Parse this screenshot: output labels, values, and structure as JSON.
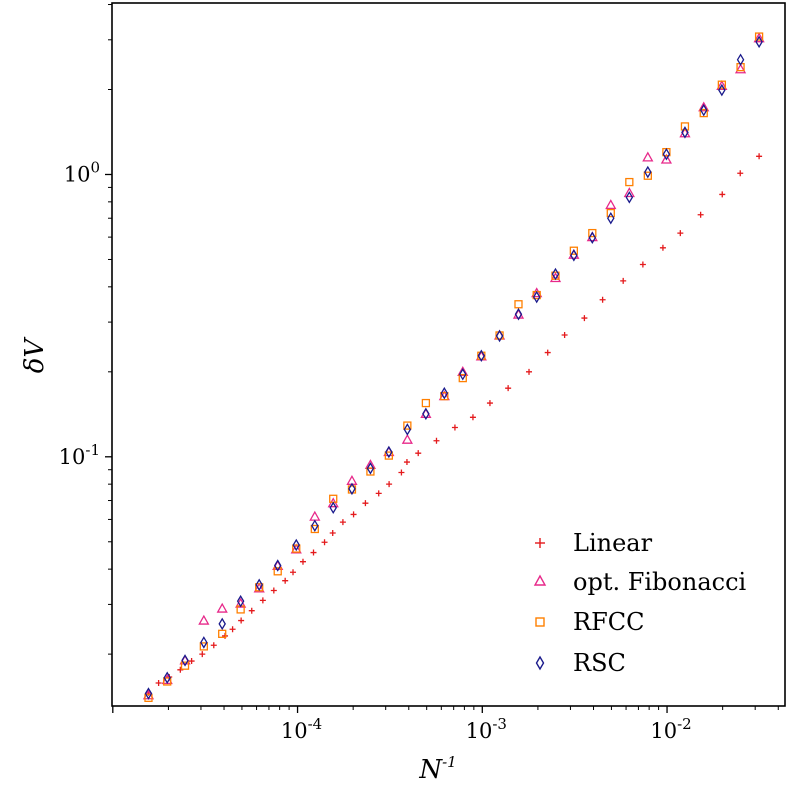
{
  "chart_data": {
    "type": "scatter",
    "title": "",
    "xlabel": "N",
    "xlabel_superscript": "-1",
    "ylabel": "δV",
    "xscale": "log",
    "yscale": "log",
    "xlim": [
      9.9e-06,
      0.0435
    ],
    "ylim": [
      0.0131,
      4.05
    ],
    "grid": false,
    "legend_position": "lower-right",
    "x_ticks": [
      {
        "base": "10",
        "exp": "-4",
        "value": 0.0001
      },
      {
        "base": "10",
        "exp": "-3",
        "value": 0.001
      },
      {
        "base": "10",
        "exp": "-2",
        "value": 0.01
      }
    ],
    "y_ticks": [
      {
        "base": "10",
        "exp": "0",
        "value": 1
      },
      {
        "base": "10",
        "exp": "-1",
        "value": 0.1
      }
    ],
    "series": [
      {
        "name": "Linear",
        "marker": "plus",
        "color": "#e41a1c",
        "points": [
          [
            1.56e-05,
            0.0146
          ],
          [
            1.77e-05,
            0.0158
          ],
          [
            2.02e-05,
            0.0166
          ],
          [
            2.32e-05,
            0.0176
          ],
          [
            2.67e-05,
            0.0189
          ],
          [
            3.05e-05,
            0.02
          ],
          [
            3.52e-05,
            0.0215
          ],
          [
            4.05e-05,
            0.0232
          ],
          [
            4.45e-05,
            0.0245
          ],
          [
            4.95e-05,
            0.0263
          ],
          [
            5.65e-05,
            0.0285
          ],
          [
            6.49e-05,
            0.031
          ],
          [
            7.44e-05,
            0.0336
          ],
          [
            8.57e-05,
            0.0364
          ],
          [
            9.45e-05,
            0.039
          ],
          [
            0.000107,
            0.0425
          ],
          [
            0.000122,
            0.0458
          ],
          [
            0.00014,
            0.0498
          ],
          [
            0.000155,
            0.0537
          ],
          [
            0.000176,
            0.0587
          ],
          [
            0.000201,
            0.0625
          ],
          [
            0.000233,
            0.0685
          ],
          [
            0.000275,
            0.0742
          ],
          [
            0.000313,
            0.08
          ],
          [
            0.000365,
            0.088
          ],
          [
            0.000391,
            0.0958
          ],
          [
            0.00045,
            0.103
          ],
          [
            0.000565,
            0.114
          ],
          [
            0.000711,
            0.127
          ],
          [
            0.00089,
            0.138
          ],
          [
            0.0011,
            0.155
          ],
          [
            0.00138,
            0.175
          ],
          [
            0.00179,
            0.2
          ],
          [
            0.00226,
            0.234
          ],
          [
            0.00279,
            0.27
          ],
          [
            0.00357,
            0.31
          ],
          [
            0.00448,
            0.36
          ],
          [
            0.00579,
            0.42
          ],
          [
            0.0074,
            0.48
          ],
          [
            0.0095,
            0.55
          ],
          [
            0.0118,
            0.62
          ],
          [
            0.0152,
            0.72
          ],
          [
            0.0199,
            0.85
          ],
          [
            0.0249,
            1.01
          ],
          [
            0.0315,
            1.16
          ]
        ]
      },
      {
        "name": "opt. Fibonacci",
        "marker": "triangle",
        "color": "#e7298a",
        "points": [
          [
            1.56e-05,
            0.0143
          ],
          [
            1.97e-05,
            0.0162
          ],
          [
            2.46e-05,
            0.019
          ],
          [
            3.11e-05,
            0.0263
          ],
          [
            3.91e-05,
            0.029
          ],
          [
            4.92e-05,
            0.0302
          ],
          [
            6.2e-05,
            0.0342
          ],
          [
            7.81e-05,
            0.0411
          ],
          [
            9.84e-05,
            0.047
          ],
          [
            0.000124,
            0.0614
          ],
          [
            0.000156,
            0.0685
          ],
          [
            0.000197,
            0.0822
          ],
          [
            0.000248,
            0.0936
          ],
          [
            0.000312,
            0.104
          ],
          [
            0.000393,
            0.115
          ],
          [
            0.000495,
            0.142
          ],
          [
            0.000623,
            0.164
          ],
          [
            0.000784,
            0.2
          ],
          [
            0.000988,
            0.227
          ],
          [
            0.00124,
            0.269
          ],
          [
            0.00157,
            0.319
          ],
          [
            0.00197,
            0.38
          ],
          [
            0.00249,
            0.43
          ],
          [
            0.00313,
            0.52
          ],
          [
            0.00394,
            0.6
          ],
          [
            0.00496,
            0.78
          ],
          [
            0.00625,
            0.86
          ],
          [
            0.00787,
            1.15
          ],
          [
            0.00992,
            1.13
          ],
          [
            0.0125,
            1.4
          ],
          [
            0.0158,
            1.73
          ],
          [
            0.0198,
            2.06
          ],
          [
            0.025,
            2.36
          ],
          [
            0.0315,
            3.04
          ]
        ]
      },
      {
        "name": "RFCC",
        "marker": "square",
        "color": "#ff7f00",
        "points": [
          [
            1.56e-05,
            0.014
          ],
          [
            1.97e-05,
            0.016
          ],
          [
            2.46e-05,
            0.0182
          ],
          [
            3.11e-05,
            0.0213
          ],
          [
            3.91e-05,
            0.0236
          ],
          [
            4.92e-05,
            0.0288
          ],
          [
            6.2e-05,
            0.0345
          ],
          [
            7.81e-05,
            0.0393
          ],
          [
            9.84e-05,
            0.0473
          ],
          [
            0.000124,
            0.0555
          ],
          [
            0.000156,
            0.071
          ],
          [
            0.000197,
            0.0766
          ],
          [
            0.000248,
            0.0887
          ],
          [
            0.000312,
            0.101
          ],
          [
            0.000393,
            0.129
          ],
          [
            0.000495,
            0.155
          ],
          [
            0.000623,
            0.164
          ],
          [
            0.000784,
            0.19
          ],
          [
            0.000988,
            0.228
          ],
          [
            0.00124,
            0.269
          ],
          [
            0.00157,
            0.347
          ],
          [
            0.00197,
            0.374
          ],
          [
            0.00249,
            0.438
          ],
          [
            0.00313,
            0.537
          ],
          [
            0.00394,
            0.62
          ],
          [
            0.00496,
            0.73
          ],
          [
            0.00625,
            0.94
          ],
          [
            0.00787,
            0.99
          ],
          [
            0.00992,
            1.2
          ],
          [
            0.0125,
            1.48
          ],
          [
            0.0158,
            1.65
          ],
          [
            0.0198,
            2.08
          ],
          [
            0.025,
            2.4
          ],
          [
            0.0315,
            3.08
          ]
        ]
      },
      {
        "name": "RSC",
        "marker": "diamond",
        "color": "#1a1a8c",
        "points": [
          [
            1.56e-05,
            0.0145
          ],
          [
            1.97e-05,
            0.0165
          ],
          [
            2.46e-05,
            0.019
          ],
          [
            3.11e-05,
            0.022
          ],
          [
            3.91e-05,
            0.0256
          ],
          [
            4.92e-05,
            0.0308
          ],
          [
            6.2e-05,
            0.0352
          ],
          [
            7.81e-05,
            0.0412
          ],
          [
            9.84e-05,
            0.0487
          ],
          [
            0.000124,
            0.057
          ],
          [
            0.000156,
            0.066
          ],
          [
            0.000197,
            0.077
          ],
          [
            0.000248,
            0.091
          ],
          [
            0.000312,
            0.104
          ],
          [
            0.000393,
            0.125
          ],
          [
            0.000495,
            0.142
          ],
          [
            0.000623,
            0.168
          ],
          [
            0.000784,
            0.196
          ],
          [
            0.000988,
            0.228
          ],
          [
            0.00124,
            0.268
          ],
          [
            0.00157,
            0.32
          ],
          [
            0.00197,
            0.368
          ],
          [
            0.00249,
            0.444
          ],
          [
            0.00313,
            0.517
          ],
          [
            0.00394,
            0.597
          ],
          [
            0.00496,
            0.7
          ],
          [
            0.00625,
            0.83
          ],
          [
            0.00787,
            1.02
          ],
          [
            0.00992,
            1.18
          ],
          [
            0.0125,
            1.41
          ],
          [
            0.0158,
            1.69
          ],
          [
            0.0198,
            1.99
          ],
          [
            0.025,
            2.55
          ],
          [
            0.0315,
            2.95
          ]
        ]
      }
    ]
  }
}
